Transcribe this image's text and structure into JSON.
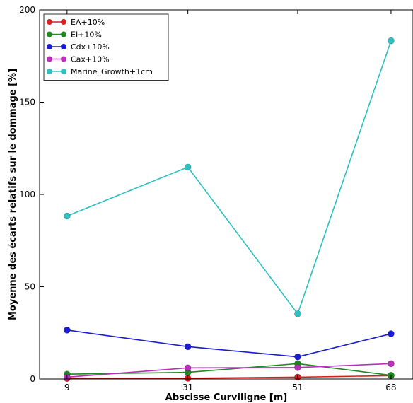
{
  "chart_data": {
    "type": "line",
    "title": "",
    "xlabel": "Abscisse Curviligne [m]",
    "ylabel": "Moyenne des écarts relatifs sur le dommage [%]",
    "x": [
      9,
      31,
      51,
      68
    ],
    "x_tick_labels": [
      "9",
      "31",
      "51",
      "68"
    ],
    "y_ticks": [
      0,
      50,
      100,
      150,
      200
    ],
    "ylim": [
      0,
      200
    ],
    "grid": false,
    "legend_position": "top-left",
    "series": [
      {
        "name": "EA+10%",
        "color": "#d62020",
        "values": [
          0.3,
          0.4,
          1.0,
          1.8
        ]
      },
      {
        "name": "EI+10%",
        "color": "#1e8a1e",
        "values": [
          2.6,
          3.6,
          8.3,
          2.0
        ]
      },
      {
        "name": "Cdx+10%",
        "color": "#1a1ad6",
        "values": [
          26.5,
          17.5,
          12.0,
          24.5
        ]
      },
      {
        "name": "Cax+10%",
        "color": "#b82fb8",
        "values": [
          1.0,
          6.0,
          6.2,
          8.3
        ]
      },
      {
        "name": "Marine_Growth+1cm",
        "color": "#2cc0c0",
        "values": [
          88.3,
          114.8,
          35.3,
          183.3
        ]
      }
    ]
  }
}
